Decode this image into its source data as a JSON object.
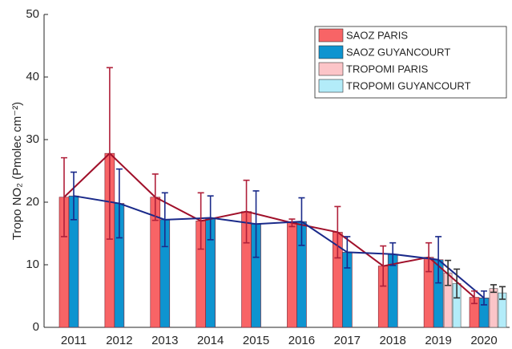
{
  "chart_data": {
    "type": "bar",
    "y_label": "Tropo NO₂ (Pmolec cm⁻²)",
    "categories": [
      "2011",
      "2012",
      "2013",
      "2014",
      "2015",
      "2016",
      "2017",
      "2018",
      "2019",
      "2020"
    ],
    "series": [
      {
        "name": "SAOZ PARIS",
        "color": "#f86466",
        "error_color": "#b0203a",
        "line": true,
        "values": [
          20.8,
          27.8,
          20.8,
          17.0,
          18.5,
          16.7,
          15.2,
          9.8,
          11.2,
          4.8
        ],
        "errors": [
          6.3,
          13.7,
          3.7,
          4.5,
          5.0,
          0.6,
          4.1,
          3.2,
          2.3,
          1.0
        ]
      },
      {
        "name": "SAOZ GUYANCOURT",
        "color": "#0e94d0",
        "error_color": "#1a2a8a",
        "line": true,
        "values": [
          21.0,
          19.8,
          17.2,
          17.5,
          16.5,
          16.9,
          12.0,
          11.7,
          10.8,
          4.7
        ],
        "errors": [
          3.8,
          5.5,
          4.3,
          3.5,
          5.3,
          3.8,
          2.5,
          1.8,
          3.7,
          1.1
        ]
      },
      {
        "name": "TROPOMI PARIS",
        "color": "#fcc5c8",
        "error_color": "#333333",
        "line": false,
        "values": [
          null,
          null,
          null,
          null,
          null,
          null,
          null,
          null,
          8.7,
          6.2
        ],
        "errors": [
          null,
          null,
          null,
          null,
          null,
          null,
          null,
          null,
          2.0,
          0.6
        ]
      },
      {
        "name": "TROPOMI GUYANCOURT",
        "color": "#b3ecf9",
        "error_color": "#333333",
        "line": false,
        "values": [
          null,
          null,
          null,
          null,
          null,
          null,
          null,
          null,
          7.0,
          5.5
        ],
        "errors": [
          null,
          null,
          null,
          null,
          null,
          null,
          null,
          null,
          2.3,
          1.0
        ]
      }
    ],
    "line_colors": [
      "#a0102a",
      "#1a2a8a"
    ],
    "ylim": [
      0,
      50
    ],
    "yticks": [
      0,
      10,
      20,
      30,
      40,
      50
    ],
    "grid": false,
    "legend": "upper right"
  }
}
